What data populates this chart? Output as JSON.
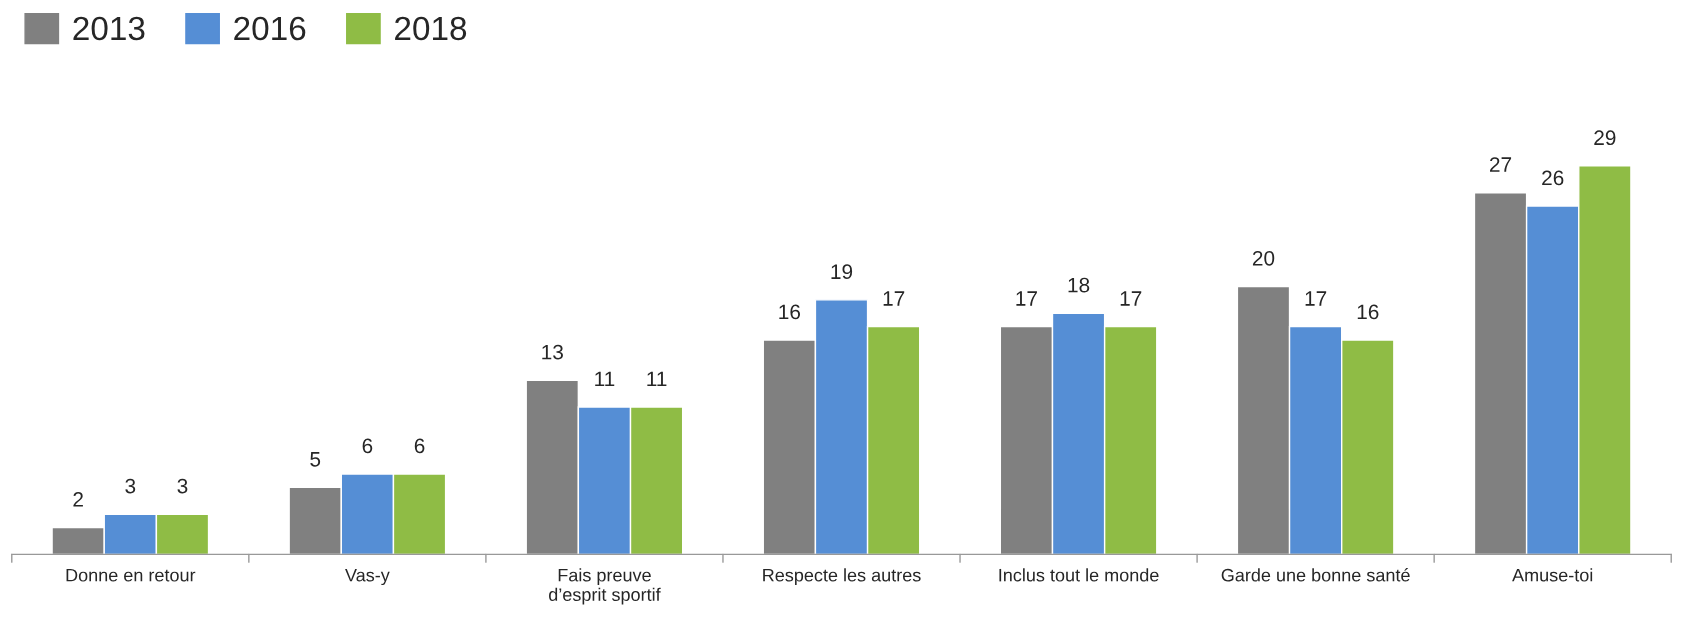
{
  "chart_data": {
    "type": "bar",
    "categories": [
      "Donne en retour",
      "Vas-y",
      "Fais preuve\nd’esprit sportif",
      "Respecte les autres",
      "Inclus tout le monde",
      "Garde une bonne santé",
      "Amuse-toi"
    ],
    "series": [
      {
        "name": "2013",
        "color": "#808080",
        "values": [
          2,
          5,
          13,
          16,
          17,
          20,
          27
        ]
      },
      {
        "name": "2016",
        "color": "#558ed5",
        "values": [
          3,
          6,
          11,
          19,
          18,
          17,
          26
        ]
      },
      {
        "name": "2018",
        "color": "#8fbc45",
        "values": [
          3,
          6,
          11,
          17,
          17,
          16,
          29
        ]
      }
    ],
    "data_labels": true,
    "legend": "top left",
    "grid": false
  }
}
